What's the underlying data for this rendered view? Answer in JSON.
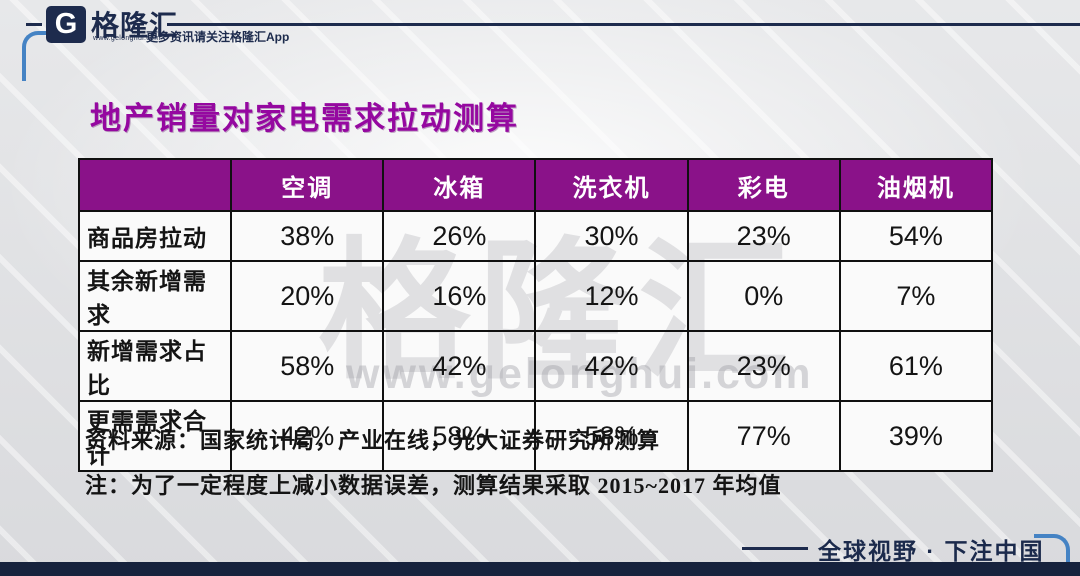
{
  "brand": {
    "logo_glyph": "G",
    "name": "格隆汇",
    "url": "www.gelonghui.com",
    "tagline": "更多资讯请关注格隆汇App"
  },
  "title": "地产销量对家电需求拉动测算",
  "chart_data": {
    "type": "table",
    "title": "地产销量对家电需求拉动测算",
    "columns": [
      "",
      "空调",
      "冰箱",
      "洗衣机",
      "彩电",
      "油烟机"
    ],
    "rows": [
      {
        "label": "商品房拉动",
        "values": [
          "38%",
          "26%",
          "30%",
          "23%",
          "54%"
        ]
      },
      {
        "label": "其余新增需求",
        "values": [
          "20%",
          "16%",
          "12%",
          "0%",
          "7%"
        ]
      },
      {
        "label": "新增需求占比",
        "values": [
          "58%",
          "42%",
          "42%",
          "23%",
          "61%"
        ]
      },
      {
        "label": "更需需求合计",
        "values": [
          "42%",
          "58%",
          "58%",
          "77%",
          "39%"
        ]
      }
    ]
  },
  "watermark": {
    "big": "格隆汇",
    "url": "www.gelonghui.com"
  },
  "notes": {
    "source": "资料来源：国家统计局，产业在线，光大证券研究所测算",
    "remark": "注：为了一定程度上减小数据误差，测算结果采取 2015~2017 年均值"
  },
  "footer": {
    "slogan": "全球视野 · 下注中国"
  },
  "colors": {
    "header_bg": "#8a1289",
    "title_purple": "#9508a0",
    "navy": "#1d2b4d",
    "bracket_blue": "#4583c4"
  }
}
